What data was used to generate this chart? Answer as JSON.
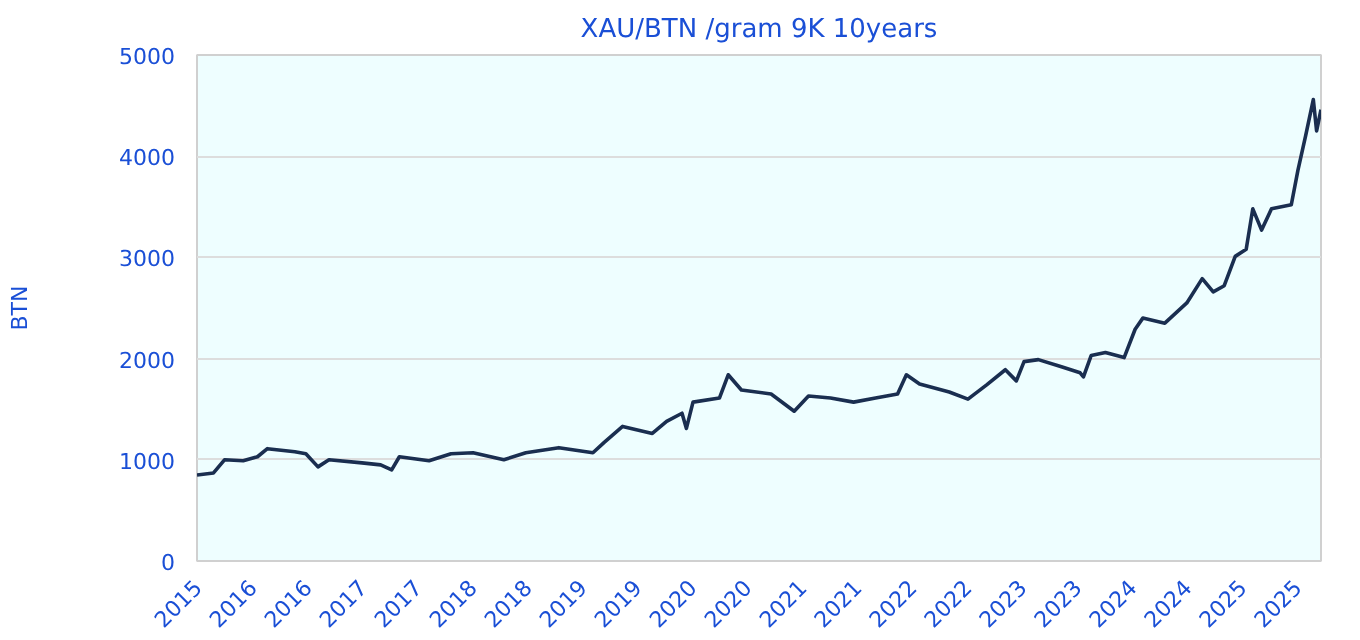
{
  "chart_data": {
    "type": "line",
    "title": "XAU/BTN /gram 9K 10years",
    "ylabel": "BTN",
    "xlim": [
      2015.5,
      2025.72
    ],
    "ylim": [
      0,
      5000
    ],
    "yticks": [
      0,
      1000,
      2000,
      3000,
      4000,
      5000
    ],
    "xticks": [
      {
        "value": 2015.5,
        "label": "2015"
      },
      {
        "value": 2016.0,
        "label": "2016"
      },
      {
        "value": 2016.5,
        "label": "2016"
      },
      {
        "value": 2017.0,
        "label": "2017"
      },
      {
        "value": 2017.5,
        "label": "2017"
      },
      {
        "value": 2018.0,
        "label": "2018"
      },
      {
        "value": 2018.5,
        "label": "2018"
      },
      {
        "value": 2019.0,
        "label": "2019"
      },
      {
        "value": 2019.5,
        "label": "2019"
      },
      {
        "value": 2020.0,
        "label": "2020"
      },
      {
        "value": 2020.5,
        "label": "2020"
      },
      {
        "value": 2021.0,
        "label": "2021"
      },
      {
        "value": 2021.5,
        "label": "2021"
      },
      {
        "value": 2022.0,
        "label": "2022"
      },
      {
        "value": 2022.5,
        "label": "2022"
      },
      {
        "value": 2023.0,
        "label": "2023"
      },
      {
        "value": 2023.5,
        "label": "2023"
      },
      {
        "value": 2024.0,
        "label": "2024"
      },
      {
        "value": 2024.5,
        "label": "2024"
      },
      {
        "value": 2025.0,
        "label": "2025"
      },
      {
        "value": 2025.5,
        "label": "2025"
      }
    ],
    "grid": "y",
    "marker": "none",
    "line_style": "solid",
    "x": [
      2015.5,
      2015.65,
      2015.75,
      2015.92,
      2016.05,
      2016.14,
      2016.39,
      2016.49,
      2016.6,
      2016.7,
      2017.0,
      2017.17,
      2017.27,
      2017.34,
      2017.61,
      2017.81,
      2018.01,
      2018.29,
      2018.49,
      2018.79,
      2019.1,
      2019.2,
      2019.37,
      2019.64,
      2019.77,
      2019.91,
      2019.95,
      2020.01,
      2020.25,
      2020.33,
      2020.45,
      2020.72,
      2020.93,
      2021.06,
      2021.26,
      2021.47,
      2021.67,
      2021.87,
      2021.95,
      2022.07,
      2022.34,
      2022.51,
      2022.68,
      2022.85,
      2022.95,
      2023.02,
      2023.15,
      2023.36,
      2023.53,
      2023.56,
      2023.63,
      2023.76,
      2023.93,
      2024.03,
      2024.1,
      2024.3,
      2024.5,
      2024.64,
      2024.74,
      2024.84,
      2024.94,
      2025.04,
      2025.1,
      2025.18,
      2025.27,
      2025.45,
      2025.51,
      2025.58,
      2025.65,
      2025.68,
      2025.72
    ],
    "series": [
      {
        "color": "#1a2e50",
        "values": [
          850,
          870,
          1000,
          990,
          1030,
          1110,
          1080,
          1060,
          930,
          1000,
          970,
          950,
          900,
          1030,
          990,
          1060,
          1070,
          1000,
          1070,
          1120,
          1070,
          1170,
          1330,
          1260,
          1380,
          1460,
          1310,
          1570,
          1610,
          1840,
          1690,
          1650,
          1480,
          1630,
          1610,
          1570,
          1610,
          1650,
          1840,
          1750,
          1670,
          1600,
          1740,
          1890,
          1780,
          1970,
          1990,
          1920,
          1860,
          1820,
          2030,
          2060,
          2010,
          2290,
          2400,
          2350,
          2550,
          2790,
          2660,
          2720,
          3010,
          3080,
          3480,
          3270,
          3480,
          3520,
          3860,
          4200,
          4560,
          4250,
          4460
        ]
      }
    ]
  }
}
